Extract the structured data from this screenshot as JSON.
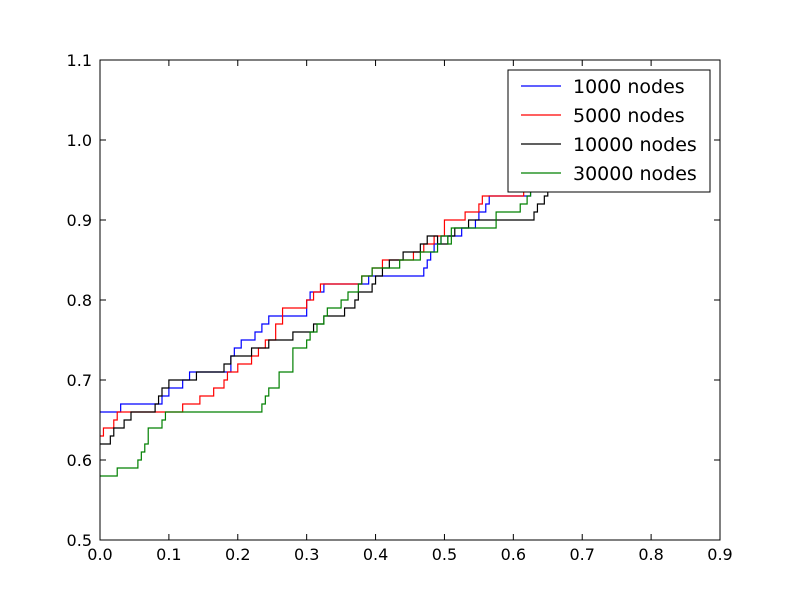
{
  "chart_data": {
    "type": "line",
    "step": true,
    "xlim": [
      0.0,
      0.9
    ],
    "ylim": [
      0.5,
      1.1
    ],
    "xticks": [
      0.0,
      0.1,
      0.2,
      0.3,
      0.4,
      0.5,
      0.6,
      0.7,
      0.8,
      0.9
    ],
    "yticks": [
      0.5,
      0.6,
      0.7,
      0.8,
      0.9,
      1.0,
      1.1
    ],
    "xtick_labels": [
      "0.0",
      "0.1",
      "0.2",
      "0.3",
      "0.4",
      "0.5",
      "0.6",
      "0.7",
      "0.8",
      "0.9"
    ],
    "ytick_labels": [
      "0.5",
      "0.6",
      "0.7",
      "0.8",
      "0.9",
      "1.0",
      "1.1"
    ],
    "grid": false,
    "legend_position": "top-right",
    "series": [
      {
        "name": "1000 nodes",
        "color": "#0000ff",
        "x": [
          0.0,
          0.03,
          0.09,
          0.095,
          0.1,
          0.105,
          0.12,
          0.13,
          0.15,
          0.19,
          0.195,
          0.205,
          0.225,
          0.235,
          0.245,
          0.25,
          0.3,
          0.305,
          0.315,
          0.325,
          0.39,
          0.41,
          0.47,
          0.475,
          0.48,
          0.485,
          0.495,
          0.5,
          0.51,
          0.525,
          0.535,
          0.545,
          0.55,
          0.555,
          0.56,
          0.565,
          0.62,
          0.625,
          0.635,
          0.645,
          0.66,
          0.675,
          0.7
        ],
        "y": [
          0.66,
          0.67,
          0.68,
          0.68,
          0.69,
          0.69,
          0.7,
          0.71,
          0.71,
          0.73,
          0.74,
          0.75,
          0.76,
          0.77,
          0.78,
          0.78,
          0.8,
          0.81,
          0.81,
          0.82,
          0.83,
          0.83,
          0.84,
          0.85,
          0.86,
          0.87,
          0.88,
          0.88,
          0.88,
          0.89,
          0.89,
          0.9,
          0.91,
          0.91,
          0.92,
          0.93,
          0.93,
          0.94,
          0.94,
          0.95,
          0.95,
          0.96,
          0.96
        ]
      },
      {
        "name": "5000 nodes",
        "color": "#ff0000",
        "x": [
          0.0,
          0.005,
          0.02,
          0.025,
          0.03,
          0.075,
          0.12,
          0.135,
          0.145,
          0.15,
          0.165,
          0.18,
          0.185,
          0.2,
          0.22,
          0.23,
          0.24,
          0.255,
          0.265,
          0.3,
          0.31,
          0.32,
          0.33,
          0.37,
          0.38,
          0.395,
          0.41,
          0.44,
          0.455,
          0.47,
          0.485,
          0.5,
          0.525,
          0.53,
          0.55,
          0.555,
          0.6,
          0.615,
          0.625,
          0.63,
          0.65,
          0.67,
          0.7
        ],
        "y": [
          0.63,
          0.64,
          0.65,
          0.66,
          0.66,
          0.66,
          0.67,
          0.67,
          0.68,
          0.68,
          0.69,
          0.7,
          0.71,
          0.72,
          0.73,
          0.74,
          0.75,
          0.77,
          0.79,
          0.8,
          0.81,
          0.82,
          0.82,
          0.82,
          0.83,
          0.84,
          0.85,
          0.85,
          0.86,
          0.87,
          0.88,
          0.9,
          0.9,
          0.91,
          0.92,
          0.93,
          0.93,
          0.94,
          0.94,
          0.95,
          0.96,
          0.96,
          0.96
        ]
      },
      {
        "name": "10000 nodes",
        "color": "#000000",
        "x": [
          0.0,
          0.015,
          0.02,
          0.035,
          0.045,
          0.065,
          0.08,
          0.085,
          0.09,
          0.1,
          0.125,
          0.14,
          0.155,
          0.18,
          0.185,
          0.19,
          0.2,
          0.22,
          0.245,
          0.255,
          0.28,
          0.31,
          0.315,
          0.325,
          0.345,
          0.355,
          0.37,
          0.375,
          0.385,
          0.395,
          0.4,
          0.405,
          0.41,
          0.42,
          0.43,
          0.44,
          0.465,
          0.475,
          0.48,
          0.49,
          0.505,
          0.515,
          0.535,
          0.63,
          0.635,
          0.645,
          0.65,
          0.67,
          0.7
        ],
        "y": [
          0.62,
          0.63,
          0.64,
          0.65,
          0.66,
          0.66,
          0.67,
          0.68,
          0.69,
          0.7,
          0.7,
          0.71,
          0.71,
          0.72,
          0.72,
          0.73,
          0.73,
          0.74,
          0.75,
          0.75,
          0.76,
          0.77,
          0.77,
          0.78,
          0.78,
          0.79,
          0.8,
          0.81,
          0.81,
          0.82,
          0.83,
          0.83,
          0.84,
          0.85,
          0.85,
          0.86,
          0.87,
          0.88,
          0.88,
          0.87,
          0.88,
          0.89,
          0.9,
          0.91,
          0.92,
          0.93,
          0.94,
          0.95,
          0.95
        ]
      },
      {
        "name": "30000 nodes",
        "color": "#008000",
        "x": [
          0.0,
          0.025,
          0.055,
          0.06,
          0.065,
          0.07,
          0.09,
          0.095,
          0.235,
          0.24,
          0.245,
          0.26,
          0.28,
          0.3,
          0.305,
          0.315,
          0.325,
          0.33,
          0.335,
          0.35,
          0.36,
          0.375,
          0.38,
          0.39,
          0.395,
          0.42,
          0.435,
          0.45,
          0.465,
          0.475,
          0.49,
          0.495,
          0.505,
          0.51,
          0.53,
          0.575,
          0.61,
          0.62,
          0.625,
          0.635,
          0.645,
          0.66,
          0.7
        ],
        "y": [
          0.58,
          0.59,
          0.6,
          0.61,
          0.62,
          0.64,
          0.65,
          0.66,
          0.67,
          0.68,
          0.69,
          0.71,
          0.74,
          0.75,
          0.76,
          0.77,
          0.78,
          0.79,
          0.79,
          0.8,
          0.81,
          0.82,
          0.83,
          0.83,
          0.84,
          0.84,
          0.85,
          0.85,
          0.86,
          0.86,
          0.87,
          0.88,
          0.87,
          0.89,
          0.89,
          0.91,
          0.92,
          0.93,
          0.94,
          0.94,
          0.95,
          0.95,
          0.95
        ]
      }
    ]
  }
}
